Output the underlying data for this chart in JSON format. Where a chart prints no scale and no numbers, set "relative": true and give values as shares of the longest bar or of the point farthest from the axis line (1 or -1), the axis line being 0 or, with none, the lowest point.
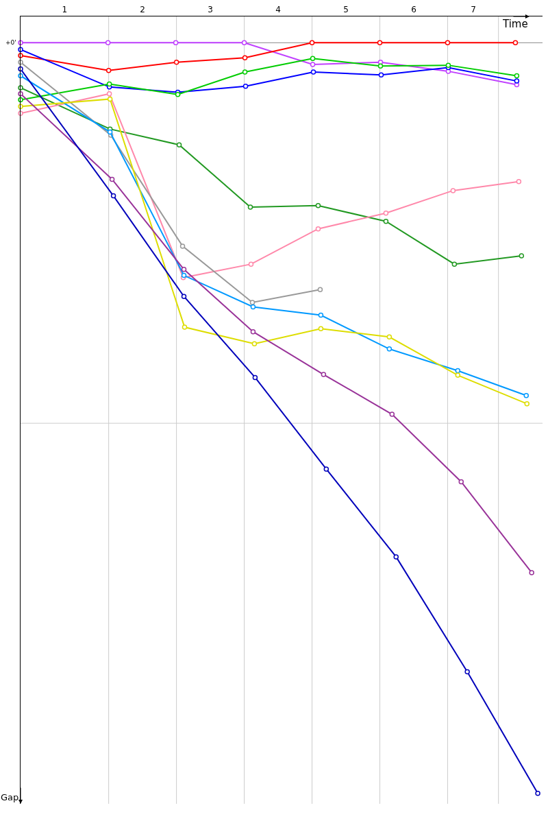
{
  "chart_data": {
    "type": "line",
    "relative": true,
    "xlabel": "Time",
    "ylabel": "Gap",
    "tick_labels": "x",
    "marker": "circle",
    "line_style": "solid",
    "xlim": [
      0,
      7.7
    ],
    "xticks": [
      {
        "value": 0.65,
        "label": "1"
      },
      {
        "value": 1.8,
        "label": "2"
      },
      {
        "value": 2.8,
        "label": "3"
      },
      {
        "value": 3.8,
        "label": "4"
      },
      {
        "value": 4.8,
        "label": "5"
      },
      {
        "value": 5.8,
        "label": "6"
      },
      {
        "value": 6.68,
        "label": "7"
      }
    ],
    "annotations": [
      {
        "text": "+0'",
        "x": 0,
        "y": 0
      }
    ],
    "ref_lines": [
      {
        "axis": "y",
        "value": 0,
        "color": "#888888"
      },
      {
        "axis": "y",
        "value": -0.507,
        "color": "#cccccc"
      },
      {
        "axis": "x",
        "value": 1.3,
        "color": "#cccccc"
      },
      {
        "axis": "x",
        "value": 2.3,
        "color": "#cccccc"
      },
      {
        "axis": "x",
        "value": 3.3,
        "color": "#cccccc"
      },
      {
        "axis": "x",
        "value": 4.3,
        "color": "#cccccc"
      },
      {
        "axis": "x",
        "value": 5.3,
        "color": "#cccccc"
      },
      {
        "axis": "x",
        "value": 6.3,
        "color": "#cccccc"
      },
      {
        "axis": "x",
        "value": 7.05,
        "color": "#cccccc"
      }
    ],
    "series": [
      {
        "color": "#c040ff",
        "x": [
          0,
          1.29,
          2.29,
          3.3,
          4.31,
          5.31,
          6.31,
          7.32
        ],
        "values": [
          0,
          0,
          0,
          0,
          -0.029,
          -0.026,
          -0.038,
          -0.056
        ]
      },
      {
        "color": "#ff0000",
        "x": [
          0,
          1.3,
          2.3,
          3.31,
          4.3,
          5.3,
          6.3,
          7.3
        ],
        "values": [
          -0.017,
          -0.037,
          -0.026,
          -0.02,
          0,
          0,
          0,
          0
        ]
      },
      {
        "color": "#0000ff",
        "x": [
          0,
          1.31,
          2.32,
          3.32,
          4.32,
          5.32,
          6.31,
          7.32
        ],
        "values": [
          -0.009,
          -0.059,
          -0.066,
          -0.058,
          -0.039,
          -0.043,
          -0.033,
          -0.051
        ]
      },
      {
        "color": "#00cc00",
        "x": [
          0,
          1.31,
          2.32,
          3.31,
          4.31,
          5.31,
          6.31,
          7.32
        ],
        "values": [
          -0.076,
          -0.055,
          -0.069,
          -0.039,
          -0.021,
          -0.031,
          -0.03,
          -0.044
        ]
      },
      {
        "color": "#229922",
        "x": [
          0,
          1.32,
          2.34,
          3.39,
          4.39,
          5.39,
          6.4,
          7.39
        ],
        "values": [
          -0.06,
          -0.115,
          -0.136,
          -0.219,
          -0.217,
          -0.238,
          -0.295,
          -0.284
        ]
      },
      {
        "color": "#ff88aa",
        "x": [
          0,
          1.31,
          2.4,
          3.4,
          4.39,
          5.39,
          6.38,
          7.35
        ],
        "values": [
          -0.094,
          -0.068,
          -0.313,
          -0.295,
          -0.248,
          -0.227,
          -0.197,
          -0.185
        ]
      },
      {
        "color": "#999999",
        "x": [
          0,
          1.33,
          2.39,
          3.42,
          4.42
        ],
        "values": [
          -0.026,
          -0.123,
          -0.271,
          -0.346,
          -0.329
        ]
      },
      {
        "color": "#0099ff",
        "x": [
          0,
          1.32,
          2.41,
          3.43,
          4.43,
          5.44,
          6.45,
          7.46
        ],
        "values": [
          -0.044,
          -0.119,
          -0.31,
          -0.352,
          -0.363,
          -0.408,
          -0.437,
          -0.47
        ]
      },
      {
        "color": "#dddd00",
        "x": [
          0,
          1.32,
          2.42,
          3.45,
          4.43,
          5.44,
          6.45,
          7.47
        ],
        "values": [
          -0.085,
          -0.075,
          -0.379,
          -0.401,
          -0.381,
          -0.392,
          -0.443,
          -0.481
        ]
      },
      {
        "color": "#993399",
        "x": [
          0,
          1.35,
          2.41,
          3.43,
          4.47,
          5.48,
          6.5,
          7.54
        ],
        "values": [
          -0.068,
          -0.182,
          -0.302,
          -0.385,
          -0.442,
          -0.495,
          -0.585,
          -0.706
        ]
      },
      {
        "color": "#0000bb",
        "x": [
          0,
          1.37,
          2.41,
          3.46,
          4.51,
          5.54,
          6.59,
          7.63
        ],
        "values": [
          -0.035,
          -0.204,
          -0.338,
          -0.446,
          -0.568,
          -0.685,
          -0.838,
          -1
        ]
      }
    ]
  }
}
